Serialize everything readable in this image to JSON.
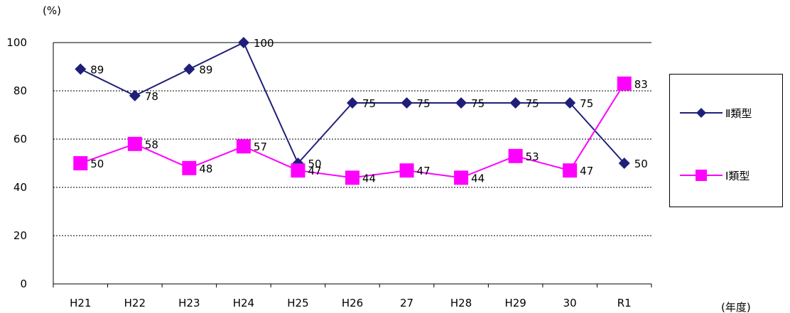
{
  "unit_label": "(%)",
  "year_label": "(年度)",
  "chart_data": {
    "type": "line",
    "categories": [
      "H21",
      "H22",
      "H23",
      "H24",
      "H25",
      "H26",
      "27",
      "H28",
      "H29",
      "30",
      "R1"
    ],
    "ylim": [
      0,
      100
    ],
    "yticks": [
      0,
      20,
      40,
      60,
      80,
      100
    ],
    "grid": true,
    "legend_position": "right",
    "series": [
      {
        "name": "Ⅱ類型",
        "color": "#1f1f7a",
        "marker": "diamond",
        "values": [
          89,
          78,
          89,
          100,
          50,
          75,
          75,
          75,
          75,
          75,
          50
        ]
      },
      {
        "name": "Ⅰ類型",
        "color": "#ff00ff",
        "marker": "square",
        "values": [
          50,
          58,
          48,
          57,
          47,
          44,
          47,
          44,
          53,
          47,
          83
        ]
      }
    ]
  }
}
